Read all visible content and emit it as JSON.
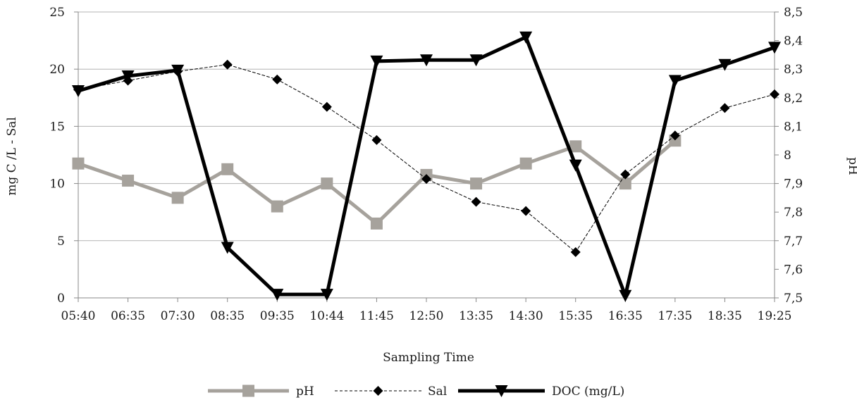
{
  "chart_data": {
    "type": "line",
    "xlabel": "Sampling Time",
    "ylabel_left": "mg C /L - Sal",
    "ylabel_right": "pH",
    "categories": [
      "05:40",
      "06:35",
      "07:30",
      "08:35",
      "09:35",
      "10:44",
      "11:45",
      "12:50",
      "13:35",
      "14:30",
      "15:35",
      "16:35",
      "17:35",
      "18:35",
      "19:25"
    ],
    "ylim_left": [
      0,
      25
    ],
    "yticks_left": [
      "0",
      "5",
      "10",
      "15",
      "20",
      "25"
    ],
    "ylim_right": [
      7.5,
      8.5
    ],
    "yticks_right": [
      "7,5",
      "7,6",
      "7,7",
      "7,8",
      "7,9",
      "8",
      "8,1",
      "8,2",
      "8,3",
      "8,4",
      "8,5"
    ],
    "grid": true,
    "legend_position": "bottom",
    "series": [
      {
        "name": "pH",
        "axis": "right",
        "color": "#a6a29c",
        "marker": "square",
        "style": "solid",
        "values": [
          7.97,
          7.91,
          7.85,
          7.95,
          7.82,
          7.9,
          7.76,
          7.93,
          7.9,
          7.97,
          8.03,
          7.9,
          8.05,
          null,
          null
        ]
      },
      {
        "name": "Sal",
        "axis": "left",
        "color": "#000000",
        "marker": "diamond",
        "style": "dashed",
        "values": [
          18.2,
          19.0,
          19.8,
          20.4,
          19.1,
          16.7,
          13.8,
          10.4,
          8.4,
          7.6,
          4.0,
          10.8,
          14.2,
          16.6,
          17.8
        ]
      },
      {
        "name": "DOC (mg/L)",
        "axis": "left",
        "color": "#000000",
        "marker": "triangle-down",
        "style": "solid-thick",
        "values": [
          18.1,
          19.4,
          19.9,
          4.4,
          0.3,
          0.3,
          20.7,
          20.8,
          20.8,
          22.8,
          11.6,
          0.2,
          19.0,
          20.4,
          21.9
        ]
      }
    ]
  }
}
